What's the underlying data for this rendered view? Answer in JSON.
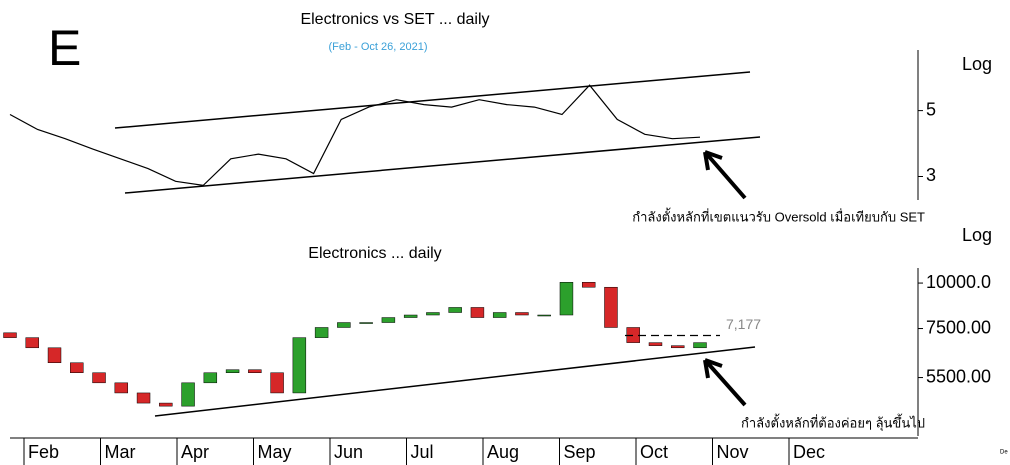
{
  "chart_data": [
    {
      "type": "line",
      "title": "Electronics vs SET ... daily",
      "subtitle": "(Feb - Oct 26, 2021)",
      "panel_label": "E",
      "scale_label": "Log",
      "log_scale": true,
      "color": "#000000",
      "values": [
        4.85,
        4.32,
        4.02,
        3.71,
        3.44,
        3.19,
        2.89,
        2.8,
        3.44,
        3.57,
        3.44,
        3.07,
        4.67,
        5.14,
        5.44,
        5.24,
        5.14,
        5.44,
        5.24,
        5.14,
        4.85,
        6.09,
        4.67,
        4.16,
        4.02,
        4.07
      ],
      "ylim": [
        2.5,
        8
      ],
      "yticks": [
        3,
        5
      ],
      "annotation": "กำลังตั้งหลักที่เขตแนวรับ Oversold เมื่อเทียบกับ SET"
    },
    {
      "type": "candlestick",
      "title": "Electronics ... daily",
      "scale_label": "Log",
      "log_scale": true,
      "up_color": "#2ca02c",
      "down_color": "#d62728",
      "open": [
        7300,
        7080,
        6640,
        6040,
        5670,
        5320,
        4990,
        4680,
        4590,
        5320,
        5670,
        5780,
        5670,
        4990,
        7080,
        7550,
        7790,
        7790,
        8040,
        8170,
        8300,
        8570,
        8040,
        8300,
        8170,
        8170,
        10050,
        9740,
        7550,
        6860,
        6730,
        6640
      ],
      "close": [
        7080,
        6640,
        6040,
        5670,
        5320,
        4990,
        4680,
        4590,
        5320,
        5670,
        5780,
        5670,
        4990,
        7080,
        7550,
        7790,
        7790,
        8040,
        8170,
        8300,
        8570,
        8040,
        8300,
        8170,
        8170,
        10050,
        9740,
        7550,
        6860,
        6730,
        6640,
        6860
      ],
      "ylim": [
        3800,
        11000
      ],
      "yticks": [
        {
          "value": 5500,
          "label": "5500.00"
        },
        {
          "value": 7500,
          "label": "7500.00"
        },
        {
          "value": 10000,
          "label": "10000.0"
        }
      ],
      "level": {
        "value": 7177,
        "label": "7,177"
      },
      "annotation": "กำลังตั้งหลักที่ต้องค่อยๆ ลุ้นขึ้นไป",
      "categories": [
        "Feb",
        "Mar",
        "Apr",
        "May",
        "Jun",
        "Jul",
        "Aug",
        "Sep",
        "Oct",
        "Nov",
        "Dec"
      ],
      "corner_note": "De"
    }
  ]
}
